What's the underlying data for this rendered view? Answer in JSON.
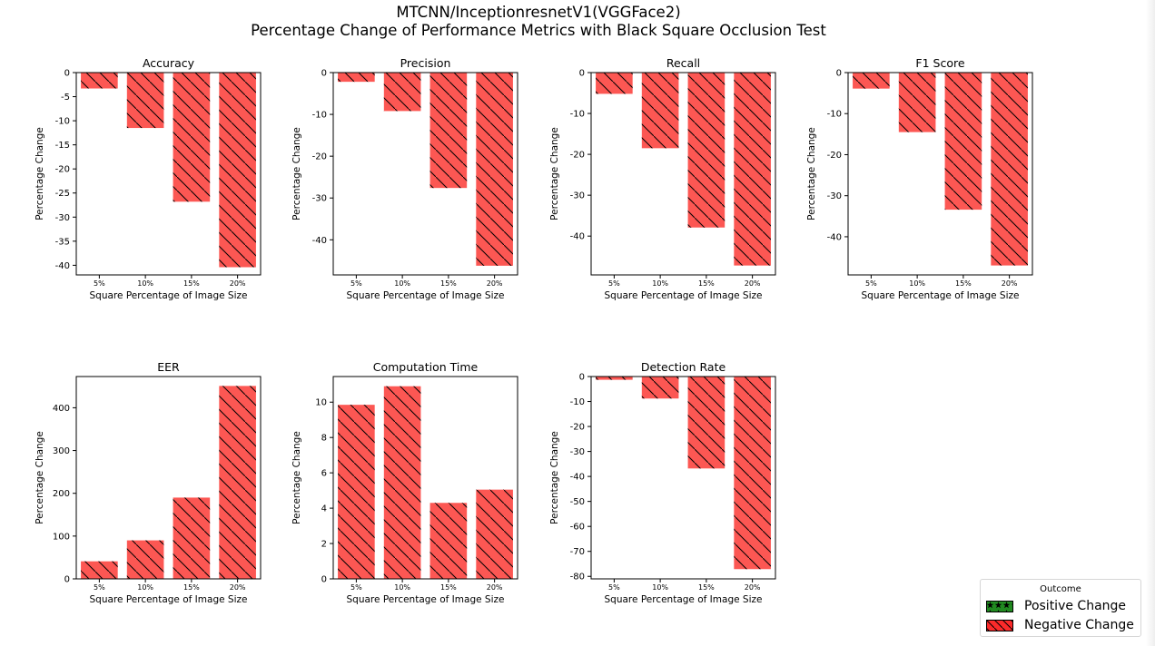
{
  "title": [
    "MTCNN/InceptionresnetV1(VGGFace2)",
    "Percentage Change of Performance Metrics with Black Square Occlusion Test"
  ],
  "colors": {
    "negative": "#fc5753",
    "positive": "#218a21",
    "hatch": "#000000"
  },
  "legend": {
    "title": "Outcome",
    "items": [
      {
        "label": "Positive Change",
        "color": "#218a21",
        "hatch": "star"
      },
      {
        "label": "Negative Change",
        "color": "#fc2a2a",
        "hatch": "diagonal"
      }
    ]
  },
  "chart_data": [
    {
      "type": "bar",
      "title": "Accuracy",
      "categories": [
        "5%",
        "10%",
        "15%",
        "20%"
      ],
      "values": [
        -3.3,
        -11.5,
        -26.8,
        -40.4
      ],
      "ylim": [
        -42.0,
        0.0
      ],
      "yticks": [
        0,
        -5,
        -10,
        -15,
        -20,
        -25,
        -30,
        -35,
        -40
      ],
      "xlabel": "Square Percentage of Image Size",
      "ylabel": "Percentage Change"
    },
    {
      "type": "bar",
      "title": "Precision",
      "categories": [
        "5%",
        "10%",
        "15%",
        "20%"
      ],
      "values": [
        -2.2,
        -9.2,
        -27.6,
        -46.2
      ],
      "ylim": [
        -48.4,
        0.0
      ],
      "yticks": [
        0,
        -10,
        -20,
        -30,
        -40
      ],
      "xlabel": "Square Percentage of Image Size",
      "ylabel": "Percentage Change"
    },
    {
      "type": "bar",
      "title": "Recall",
      "categories": [
        "5%",
        "10%",
        "15%",
        "20%"
      ],
      "values": [
        -5.2,
        -18.5,
        -37.9,
        -47.2
      ],
      "ylim": [
        -49.5,
        0.0
      ],
      "yticks": [
        0,
        -10,
        -20,
        -30,
        -40
      ],
      "xlabel": "Square Percentage of Image Size",
      "ylabel": "Percentage Change"
    },
    {
      "type": "bar",
      "title": "F1 Score",
      "categories": [
        "5%",
        "10%",
        "15%",
        "20%"
      ],
      "values": [
        -3.9,
        -14.5,
        -33.4,
        -47.0
      ],
      "ylim": [
        -49.3,
        0.0
      ],
      "yticks": [
        0,
        -10,
        -20,
        -30,
        -40
      ],
      "xlabel": "Square Percentage of Image Size",
      "ylabel": "Percentage Change"
    },
    {
      "type": "bar",
      "title": "EER",
      "categories": [
        "5%",
        "10%",
        "15%",
        "20%"
      ],
      "values": [
        41,
        90,
        190,
        451
      ],
      "ylim": [
        0,
        473
      ],
      "yticks": [
        0,
        100,
        200,
        300,
        400
      ],
      "xlabel": "Square Percentage of Image Size",
      "ylabel": "Percentage Change"
    },
    {
      "type": "bar",
      "title": "Computation Time",
      "categories": [
        "5%",
        "10%",
        "15%",
        "20%"
      ],
      "values": [
        9.85,
        10.9,
        4.3,
        5.05
      ],
      "ylim": [
        0,
        11.45
      ],
      "yticks": [
        0,
        2,
        4,
        6,
        8,
        10
      ],
      "xlabel": "Square Percentage of Image Size",
      "ylabel": "Percentage Change"
    },
    {
      "type": "bar",
      "title": "Detection Rate",
      "categories": [
        "5%",
        "10%",
        "15%",
        "20%"
      ],
      "values": [
        -1.3,
        -8.8,
        -36.8,
        -77.1
      ],
      "ylim": [
        -81.0,
        0.0
      ],
      "yticks": [
        0,
        -10,
        -20,
        -30,
        -40,
        -50,
        -60,
        -70,
        -80
      ],
      "xlabel": "Square Percentage of Image Size",
      "ylabel": "Percentage Change"
    }
  ]
}
